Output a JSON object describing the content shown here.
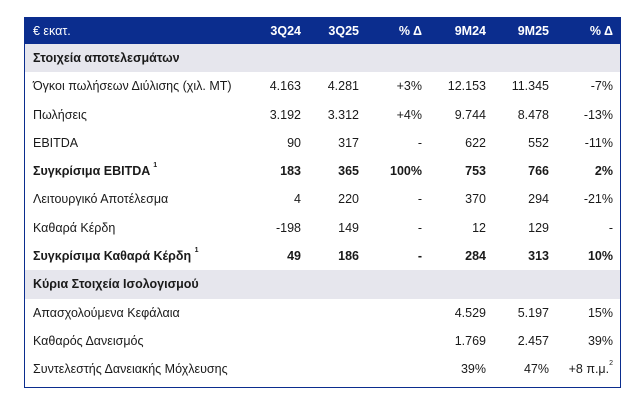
{
  "header": {
    "label": "€ εκατ.",
    "columns": [
      "3Q24",
      "3Q25",
      "% Δ",
      "9M24",
      "9M25",
      "% Δ"
    ]
  },
  "sections": [
    {
      "title": "Στοιχεία αποτελεσμάτων",
      "rows": [
        {
          "label": "Όγκοι πωλήσεων Διύλισης (χιλ. MT)",
          "sup": "",
          "bold": false,
          "values": [
            "4.163",
            "4.281",
            "+3%",
            "12.153",
            "11.345",
            "-7%"
          ]
        },
        {
          "label": "Πωλήσεις",
          "sup": "",
          "bold": false,
          "values": [
            "3.192",
            "3.312",
            "+4%",
            "9.744",
            "8.478",
            "-13%"
          ]
        },
        {
          "label": "EBITDA",
          "sup": "",
          "bold": false,
          "values": [
            "90",
            "317",
            "-",
            "622",
            "552",
            "-11%"
          ]
        },
        {
          "label": "Συγκρίσιμα EBITDA",
          "sup": "1",
          "bold": true,
          "values": [
            "183",
            "365",
            "100%",
            "753",
            "766",
            "2%"
          ]
        },
        {
          "label": "Λειτουργικό Αποτέλεσμα",
          "sup": "",
          "bold": false,
          "values": [
            "4",
            "220",
            "-",
            "370",
            "294",
            "-21%"
          ]
        },
        {
          "label": "Καθαρά Κέρδη",
          "sup": "",
          "bold": false,
          "values": [
            "-198",
            "149",
            "-",
            "12",
            "129",
            "-"
          ]
        },
        {
          "label": "Συγκρίσιμα Καθαρά Κέρδη",
          "sup": "1",
          "bold": true,
          "values": [
            "49",
            "186",
            "-",
            "284",
            "313",
            "10%"
          ]
        }
      ]
    },
    {
      "title": "Κύρια Στοιχεία Ισολογισμού",
      "rows": [
        {
          "label": "Απασχολούμενα Κεφάλαια",
          "sup": "",
          "bold": false,
          "values": [
            "",
            "",
            "",
            "4.529",
            "5.197",
            "15%"
          ]
        },
        {
          "label": "Καθαρός Δανεισμός",
          "sup": "",
          "bold": false,
          "values": [
            "",
            "",
            "",
            "1.769",
            "2.457",
            "39%"
          ]
        },
        {
          "label": "Συντελεστής Δανειακής Μόχλευσης",
          "sup": "",
          "bold": false,
          "values": [
            "",
            "",
            "",
            "39%",
            "47%",
            "+8 π.μ."
          ],
          "last_sup": "2"
        }
      ]
    }
  ]
}
